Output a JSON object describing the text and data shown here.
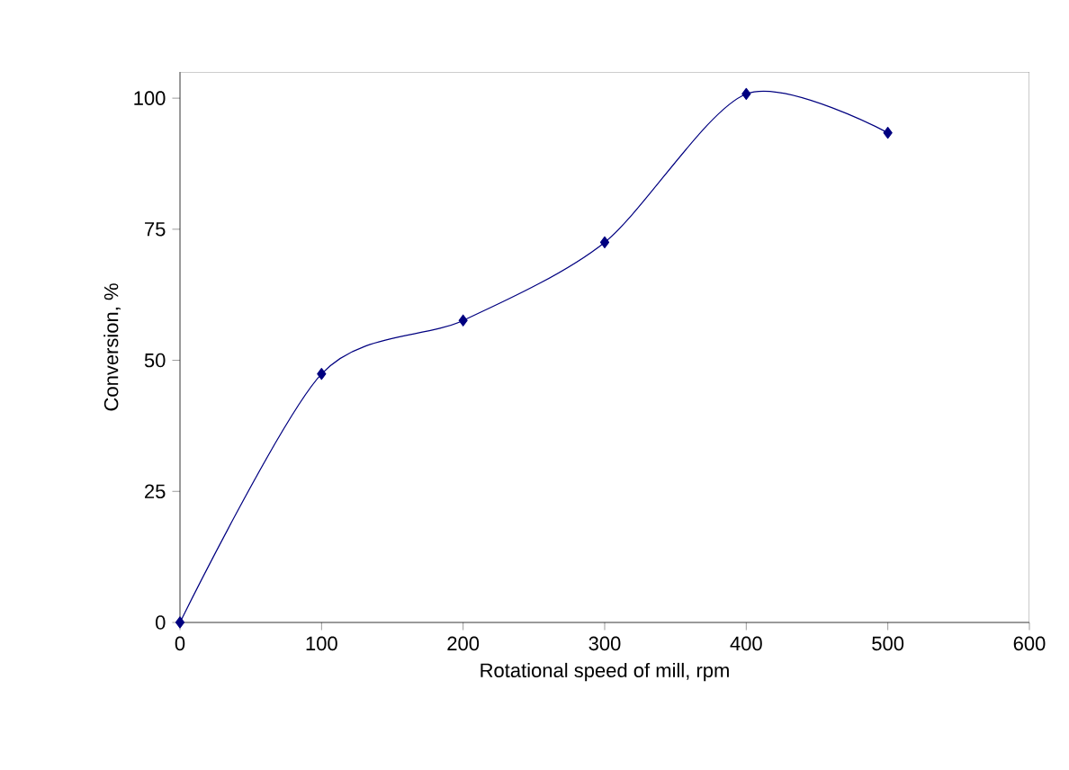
{
  "chart_data": {
    "type": "line",
    "xlabel": "Rotational  speed of mill, rpm",
    "ylabel": "Conversion, %",
    "x": [
      0,
      100,
      200,
      300,
      400,
      500
    ],
    "series": [
      {
        "color": "#000080",
        "values": [
          0,
          47.4,
          57.6,
          72.5,
          100.8,
          93.4
        ]
      }
    ],
    "xlim": [
      0,
      600
    ],
    "xticks": [
      0,
      100,
      200,
      300,
      400,
      500,
      600
    ],
    "ylim": [
      0,
      105
    ],
    "yticks": [
      0,
      25,
      50,
      75,
      100
    ],
    "marker": "diamond",
    "line_style": "solid"
  }
}
